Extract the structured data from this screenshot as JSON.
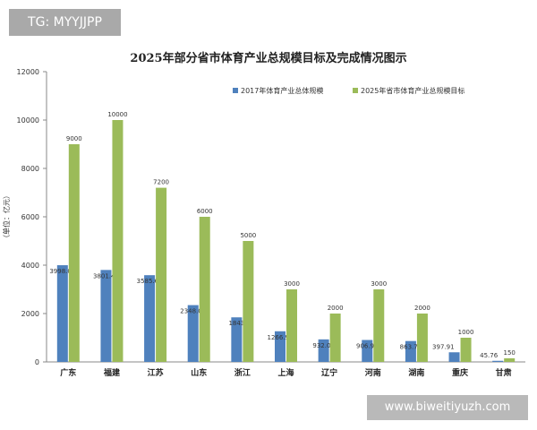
{
  "watermarks": {
    "top": "TG: MYYJJPP",
    "bottom": "www.biweitiyuzh.com"
  },
  "colors": {
    "series_2017": "#4f81bd",
    "series_2025": "#9bbb59",
    "axis": "#888888",
    "text": "#333333"
  },
  "chart_data": {
    "type": "bar",
    "title": "2025年部分省市体育产业总规模目标及完成情况图示",
    "xlabel": "",
    "ylabel": "（单位：亿元）",
    "ylim": [
      0,
      12000
    ],
    "yticks": [
      0,
      2000,
      4000,
      6000,
      8000,
      10000,
      12000
    ],
    "grid": false,
    "legend_position": "top-right",
    "categories": [
      "广东",
      "福建",
      "江苏",
      "山东",
      "浙江",
      "上海",
      "辽宁",
      "河南",
      "湖南",
      "重庆",
      "甘肃"
    ],
    "series": [
      {
        "name": "2017年体育产业总体规模",
        "values": [
          3998.03,
          3801.41,
          3585.64,
          2348.01,
          1843,
          1266.93,
          932.09,
          906.99,
          863.74,
          397.91,
          45.76
        ],
        "labels": [
          "3998.03",
          "3801.41",
          "3585.64",
          "2348.01",
          "1843",
          "1266.93",
          "932.09",
          "906.99",
          "863.74",
          "397.91",
          "45.76"
        ]
      },
      {
        "name": "2025年省市体育产业总规模目标",
        "values": [
          9000,
          10000,
          7200,
          6000,
          5000,
          3000,
          2000,
          3000,
          2000,
          1000,
          150
        ],
        "labels": [
          "9000",
          "10000",
          "7200",
          "6000",
          "5000",
          "3000",
          "2000",
          "3000",
          "2000",
          "1000",
          "150"
        ]
      }
    ]
  }
}
